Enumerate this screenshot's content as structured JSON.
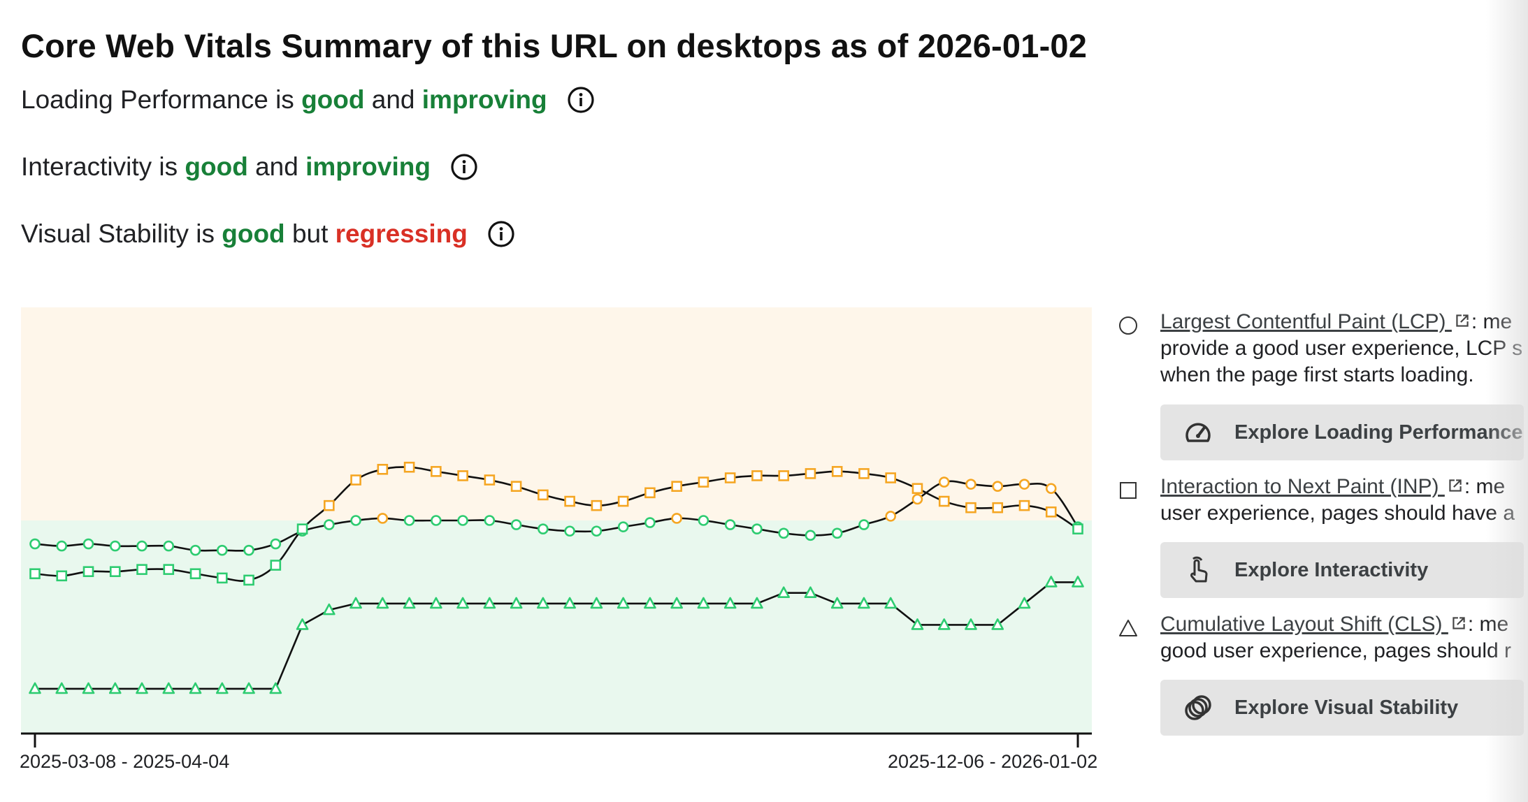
{
  "title": "Core Web Vitals Summary of this URL on desktops as of 2026-01-02",
  "statuses": [
    {
      "metric": "Loading Performance",
      "is": "is",
      "rating": "good",
      "conj": "and",
      "trend": "improving"
    },
    {
      "metric": "Interactivity",
      "is": "is",
      "rating": "good",
      "conj": "and",
      "trend": "improving"
    },
    {
      "metric": "Visual Stability",
      "is": "is",
      "rating": "good",
      "conj": "but",
      "trend": "regressing"
    }
  ],
  "legend": [
    {
      "marker": "circle",
      "link": "Largest Contentful Paint (LCP)",
      "lines": [
        ": me",
        "provide a good user experience, LCP s",
        "when the page first starts loading."
      ],
      "button": "Explore Loading Performance",
      "button_icon": "speedometer-icon"
    },
    {
      "marker": "square",
      "link": "Interaction to Next Paint (INP)",
      "lines": [
        ": me",
        "user experience, pages should have a"
      ],
      "button": "Explore Interactivity",
      "button_icon": "tap-hand-icon"
    },
    {
      "marker": "triangle",
      "link": "Cumulative Layout Shift (CLS)",
      "lines": [
        ": me",
        "good user experience, pages should r"
      ],
      "button": "Explore Visual Stability",
      "button_icon": "overlapping-circles-icon"
    }
  ],
  "colors": {
    "good": "#188038",
    "bad": "#d93025",
    "good_band": "#e9f8ee",
    "needs_improvement_band": "#fef6ea",
    "good_marker": "#2ecc71",
    "ni_marker": "#f5a623",
    "line": "#111111"
  },
  "chart_data": {
    "type": "line",
    "x_tick_labels": [
      "2025-03-08 - 2025-04-04",
      "2025-12-06 - 2026-01-02"
    ],
    "y_scale": "relative to good/needs-improvement threshold (1.0 = threshold)",
    "threshold": 1.0,
    "ylim": [
      0,
      2
    ],
    "series": [
      {
        "name": "Largest Contentful Paint (LCP)",
        "marker": "circle",
        "values": [
          0.89,
          0.88,
          0.89,
          0.88,
          0.88,
          0.88,
          0.86,
          0.86,
          0.86,
          0.89,
          0.95,
          0.98,
          1.0,
          1.01,
          1.0,
          1.0,
          1.0,
          1.0,
          0.98,
          0.96,
          0.95,
          0.95,
          0.97,
          0.99,
          1.01,
          1.0,
          0.98,
          0.96,
          0.94,
          0.93,
          0.94,
          0.98,
          1.02,
          1.1,
          1.18,
          1.17,
          1.16,
          1.17,
          1.15,
          0.97
        ]
      },
      {
        "name": "Interaction to Next Paint (INP)",
        "marker": "square",
        "values": [
          0.75,
          0.74,
          0.76,
          0.76,
          0.77,
          0.77,
          0.75,
          0.73,
          0.72,
          0.79,
          0.96,
          1.07,
          1.19,
          1.24,
          1.25,
          1.23,
          1.21,
          1.19,
          1.16,
          1.12,
          1.09,
          1.07,
          1.09,
          1.13,
          1.16,
          1.18,
          1.2,
          1.21,
          1.21,
          1.22,
          1.23,
          1.22,
          1.2,
          1.15,
          1.09,
          1.06,
          1.06,
          1.07,
          1.04,
          0.96
        ]
      },
      {
        "name": "Cumulative Layout Shift (CLS)",
        "marker": "triangle",
        "values": [
          0.21,
          0.21,
          0.21,
          0.21,
          0.21,
          0.21,
          0.21,
          0.21,
          0.21,
          0.21,
          0.51,
          0.58,
          0.61,
          0.61,
          0.61,
          0.61,
          0.61,
          0.61,
          0.61,
          0.61,
          0.61,
          0.61,
          0.61,
          0.61,
          0.61,
          0.61,
          0.61,
          0.61,
          0.66,
          0.66,
          0.61,
          0.61,
          0.61,
          0.51,
          0.51,
          0.51,
          0.51,
          0.61,
          0.71,
          0.71
        ]
      }
    ],
    "bands": [
      {
        "name": "good",
        "from": 0,
        "to": 1.0
      },
      {
        "name": "needs improvement",
        "from": 1.0,
        "to": 2.0
      }
    ]
  }
}
